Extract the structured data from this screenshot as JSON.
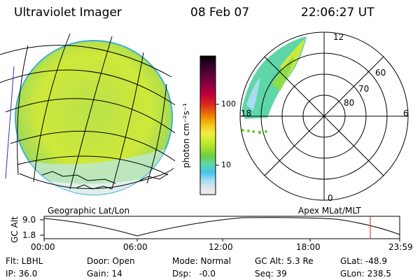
{
  "header": {
    "title": "Ultraviolet Imager",
    "date": "08 Feb 07",
    "time": "22:06:27 UT"
  },
  "colorbar": {
    "label": "photon cm⁻²s⁻¹",
    "ticks": [
      "100",
      "10"
    ],
    "colors": [
      "#000000",
      "#3a0030",
      "#7a0040",
      "#c0003a",
      "#e0301a",
      "#f08a00",
      "#f3c81a",
      "#eef040",
      "#b8e62a",
      "#6ccf3a",
      "#5fd6a8",
      "#46c6e8",
      "#a9dcf0",
      "#dde6ec",
      "#eeeeee"
    ]
  },
  "left_panel": {
    "caption": "Geographic Lat/Lon"
  },
  "right_panel": {
    "caption": "Apex MLat/MLT",
    "lat_labels": [
      "60",
      "70",
      "80"
    ],
    "mlt_labels": {
      "top": "12",
      "right": "6",
      "bottom": "0",
      "left": "18"
    }
  },
  "timeline": {
    "ylabel": "GC Alt",
    "y_ticks": [
      "9.0",
      "1.8"
    ],
    "x_ticks": [
      "00:00",
      "06:00",
      "12:00",
      "18:00",
      "23:59"
    ],
    "marker_color": "#cc2222"
  },
  "status": {
    "row1": [
      "Flt: LBHL",
      "Door: Open",
      "Mode: Normal",
      "GC Alt: 5.3 Re",
      "GLat: -48.9"
    ],
    "row2": [
      "IP: 36.0",
      "Gain: 14",
      "Dsp:   -0.0",
      "Seq: 39",
      "GLon: 238.5"
    ]
  }
}
